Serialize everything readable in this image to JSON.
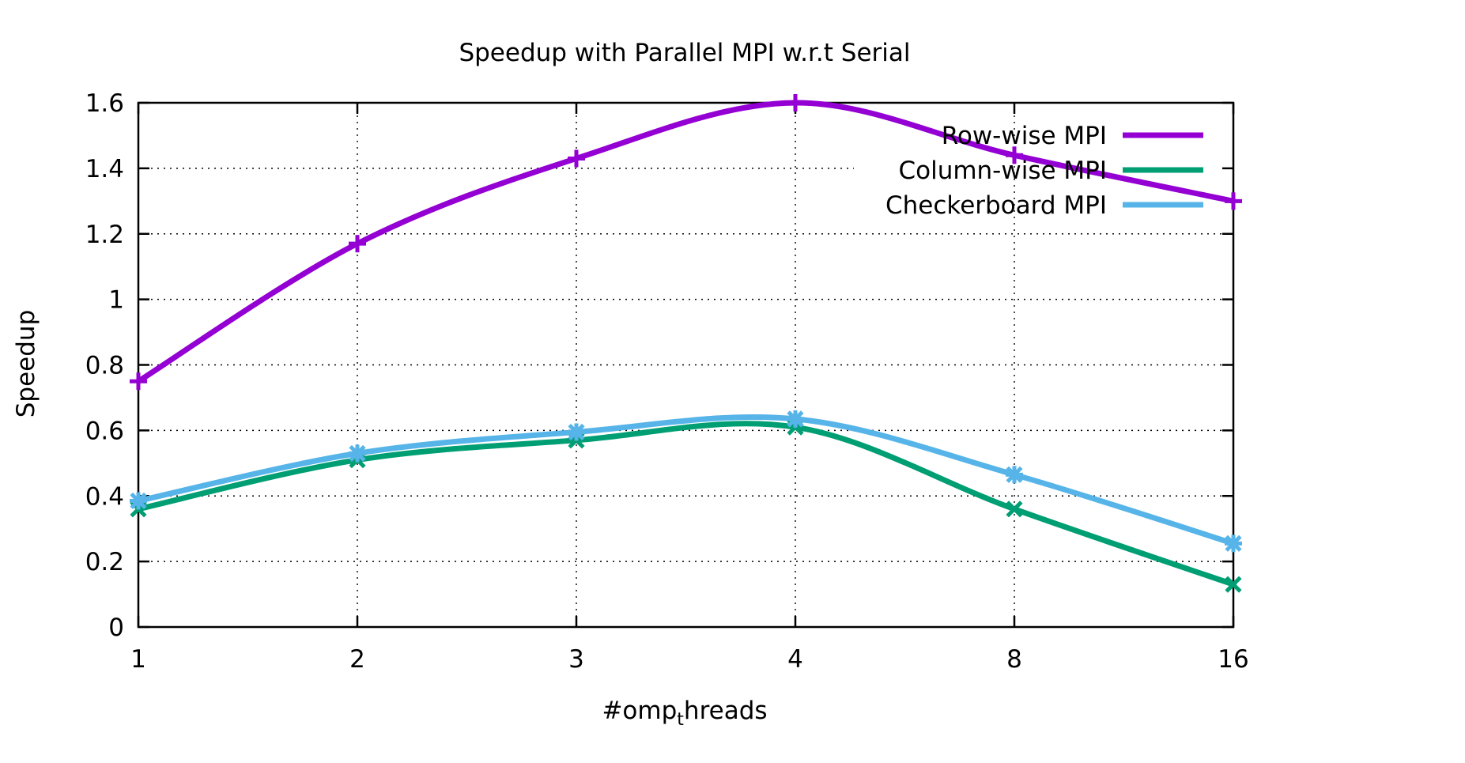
{
  "chart_data": {
    "type": "line",
    "title": "Speedup with Parallel MPI w.r.t Serial",
    "xlabel_main": "#omp",
    "xlabel_sub": "t",
    "xlabel_tail": "hreads",
    "ylabel": "Speedup",
    "categories": [
      "1",
      "2",
      "3",
      "4",
      "8",
      "16"
    ],
    "ylim": [
      0,
      1.6
    ],
    "yticks": [
      "0",
      "0.2",
      "0.4",
      "0.6",
      "0.8",
      "1",
      "1.2",
      "1.4",
      "1.6"
    ],
    "grid": true,
    "legend_position": "top-right",
    "series": [
      {
        "name": "Row-wise MPI",
        "color": "#9400d3",
        "marker": "plus",
        "values": [
          0.75,
          1.17,
          1.43,
          1.6,
          1.44,
          1.3
        ]
      },
      {
        "name": "Column-wise MPI",
        "color": "#009e73",
        "marker": "cross",
        "values": [
          0.36,
          0.51,
          0.57,
          0.61,
          0.36,
          0.13
        ]
      },
      {
        "name": "Checkerboard MPI",
        "color": "#56b4e9",
        "marker": "star",
        "values": [
          0.385,
          0.53,
          0.595,
          0.635,
          0.465,
          0.255
        ]
      }
    ]
  }
}
